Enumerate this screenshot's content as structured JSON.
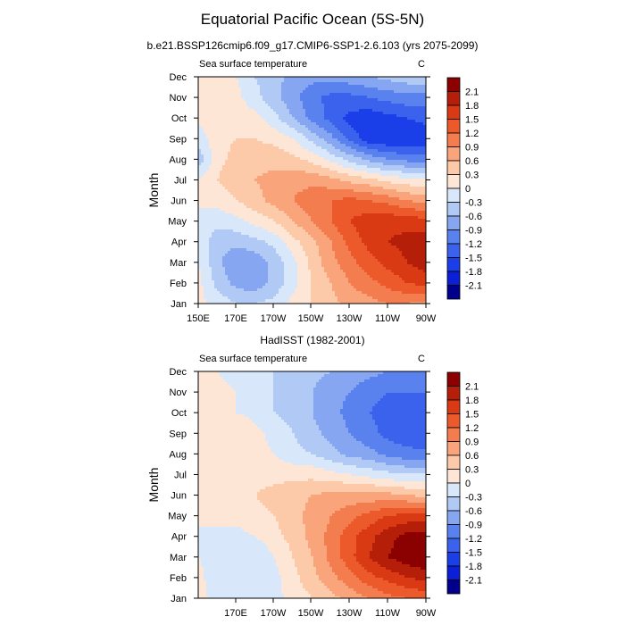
{
  "title": "Equatorial Pacific Ocean (5S-5N)",
  "colorscale": {
    "levels": [
      -2.1,
      -1.8,
      -1.5,
      -1.2,
      -0.9,
      -0.6,
      -0.3,
      0,
      0.3,
      0.6,
      0.9,
      1.2,
      1.5,
      1.8,
      2.1
    ],
    "labels": [
      "2.1",
      "1.8",
      "1.5",
      "1.2",
      "0.9",
      "0.6",
      "0.3",
      "0",
      "-0.3",
      "-0.6",
      "-0.9",
      "-1.2",
      "-1.5",
      "-1.8",
      "-2.1"
    ],
    "colors": [
      "#00008b",
      "#0a1fd6",
      "#1a3ee8",
      "#3a62ec",
      "#5a82ee",
      "#86a6f1",
      "#b1c9f5",
      "#d9e7fb",
      "#fde6d6",
      "#fccaa8",
      "#f9a47a",
      "#f47d50",
      "#ec5a2c",
      "#d93a14",
      "#b51e08",
      "#8b0000"
    ]
  },
  "chart_data": [
    {
      "type": "heatmap",
      "panel_label": "b.e21.BSSP126cmip6.f09_g17.CMIP6-SSP1-2.6.103 (yrs 2075-2099)",
      "left_string": "Sea surface temperature",
      "right_string": "C",
      "ylabel": "Month",
      "x_ticks": [
        "150E",
        "170E",
        "170W",
        "150W",
        "130W",
        "110W",
        "90W"
      ],
      "y_ticks": [
        "Jan",
        "Feb",
        "Mar",
        "Apr",
        "May",
        "Jun",
        "Jul",
        "Aug",
        "Sep",
        "Oct",
        "Nov",
        "Dec"
      ],
      "x_lon_east": [
        150,
        160,
        170,
        180,
        190,
        200,
        210,
        220,
        230,
        240,
        250,
        260,
        270
      ],
      "grid": [
        [
          0.1,
          -0.1,
          -0.3,
          -0.3,
          -0.2,
          0.1,
          0.3,
          0.5,
          0.7,
          0.8,
          0.9,
          0.9,
          0.8
        ],
        [
          0.1,
          -0.4,
          -0.7,
          -0.8,
          -0.5,
          -0.1,
          0.3,
          0.6,
          0.9,
          1.1,
          1.3,
          1.5,
          1.6
        ],
        [
          0.0,
          -0.5,
          -0.9,
          -0.8,
          -0.5,
          -0.1,
          0.4,
          0.8,
          1.1,
          1.4,
          1.6,
          1.8,
          2.0
        ],
        [
          -0.1,
          -0.5,
          -0.5,
          -0.4,
          -0.2,
          0.2,
          0.5,
          0.9,
          1.3,
          1.6,
          1.8,
          1.9,
          2.0
        ],
        [
          0.0,
          -0.2,
          -0.1,
          0.1,
          0.3,
          0.6,
          0.9,
          1.2,
          1.5,
          1.7,
          1.7,
          1.7,
          1.6
        ],
        [
          0.0,
          0.1,
          0.3,
          0.5,
          0.7,
          0.9,
          1.1,
          1.2,
          1.3,
          1.2,
          1.1,
          0.9,
          0.8
        ],
        [
          0.0,
          0.3,
          0.5,
          0.6,
          0.7,
          0.8,
          0.8,
          0.7,
          0.5,
          0.4,
          0.2,
          0.1,
          0.0
        ],
        [
          -0.5,
          0.2,
          0.4,
          0.5,
          0.5,
          0.4,
          0.2,
          -0.1,
          -0.4,
          -0.7,
          -0.9,
          -1.0,
          -1.1
        ],
        [
          -0.2,
          0.2,
          0.3,
          0.3,
          0.2,
          0.0,
          -0.4,
          -0.8,
          -1.3,
          -1.7,
          -1.8,
          -1.8,
          -1.7
        ],
        [
          0.1,
          0.2,
          0.2,
          0.1,
          -0.2,
          -0.6,
          -1.0,
          -1.3,
          -1.6,
          -1.7,
          -1.6,
          -1.5,
          -1.4
        ],
        [
          0.1,
          0.2,
          0.1,
          -0.2,
          -0.5,
          -0.8,
          -1.1,
          -1.3,
          -1.3,
          -1.2,
          -1.1,
          -1.0,
          -1.0
        ],
        [
          0.1,
          0.2,
          0.0,
          -0.3,
          -0.5,
          -0.7,
          -0.8,
          -0.8,
          -0.7,
          -0.6,
          -0.5,
          -0.4,
          -0.4
        ]
      ]
    },
    {
      "type": "heatmap",
      "panel_label": "HadISST (1982-2001)",
      "left_string": "Sea surface temperature",
      "right_string": "C",
      "ylabel": "Month",
      "x_ticks": [
        "170E",
        "170W",
        "150W",
        "130W",
        "110W",
        "90W"
      ],
      "y_ticks": [
        "Jan",
        "Feb",
        "Mar",
        "Apr",
        "May",
        "Jun",
        "Jul",
        "Aug",
        "Sep",
        "Oct",
        "Nov",
        "Dec"
      ],
      "x_lon_east": [
        150,
        160,
        170,
        180,
        190,
        200,
        210,
        220,
        230,
        240,
        250,
        260,
        270
      ],
      "grid": [
        [
          0.1,
          -0.1,
          -0.2,
          -0.2,
          -0.1,
          0.1,
          0.3,
          0.5,
          0.7,
          0.9,
          1.1,
          1.2,
          1.3
        ],
        [
          0.1,
          -0.2,
          -0.3,
          -0.3,
          -0.1,
          0.2,
          0.5,
          0.8,
          1.1,
          1.4,
          1.6,
          1.8,
          1.9
        ],
        [
          0.0,
          -0.2,
          -0.3,
          -0.3,
          0.0,
          0.3,
          0.6,
          1.0,
          1.4,
          1.8,
          2.1,
          2.3,
          2.4
        ],
        [
          0.0,
          -0.1,
          -0.1,
          0.0,
          0.2,
          0.4,
          0.7,
          1.0,
          1.4,
          1.7,
          2.0,
          2.2,
          2.2
        ],
        [
          0.0,
          0.1,
          0.1,
          0.2,
          0.3,
          0.5,
          0.7,
          0.9,
          1.1,
          1.3,
          1.5,
          1.6,
          1.6
        ],
        [
          0.0,
          0.1,
          0.2,
          0.3,
          0.4,
          0.5,
          0.6,
          0.7,
          0.7,
          0.7,
          0.7,
          0.6,
          0.5
        ],
        [
          0.1,
          0.1,
          0.2,
          0.2,
          0.2,
          0.2,
          0.2,
          0.1,
          0.0,
          -0.1,
          -0.2,
          -0.3,
          -0.3
        ],
        [
          0.0,
          0.1,
          0.2,
          0.1,
          0.0,
          -0.2,
          -0.3,
          -0.5,
          -0.7,
          -0.8,
          -1.0,
          -1.1,
          -1.1
        ],
        [
          0.1,
          0.2,
          0.3,
          0.1,
          -0.1,
          -0.3,
          -0.5,
          -0.7,
          -0.9,
          -1.1,
          -1.3,
          -1.4,
          -1.5
        ],
        [
          0.1,
          0.1,
          0.0,
          -0.1,
          -0.3,
          -0.4,
          -0.6,
          -0.8,
          -1.0,
          -1.2,
          -1.3,
          -1.4,
          -1.4
        ],
        [
          0.1,
          0.1,
          0.0,
          -0.2,
          -0.3,
          -0.5,
          -0.6,
          -0.8,
          -0.9,
          -1.1,
          -1.2,
          -1.2,
          -1.2
        ],
        [
          0.1,
          0.0,
          -0.1,
          -0.2,
          -0.3,
          -0.4,
          -0.5,
          -0.6,
          -0.7,
          -0.8,
          -0.9,
          -1.0,
          -1.0
        ]
      ]
    }
  ]
}
